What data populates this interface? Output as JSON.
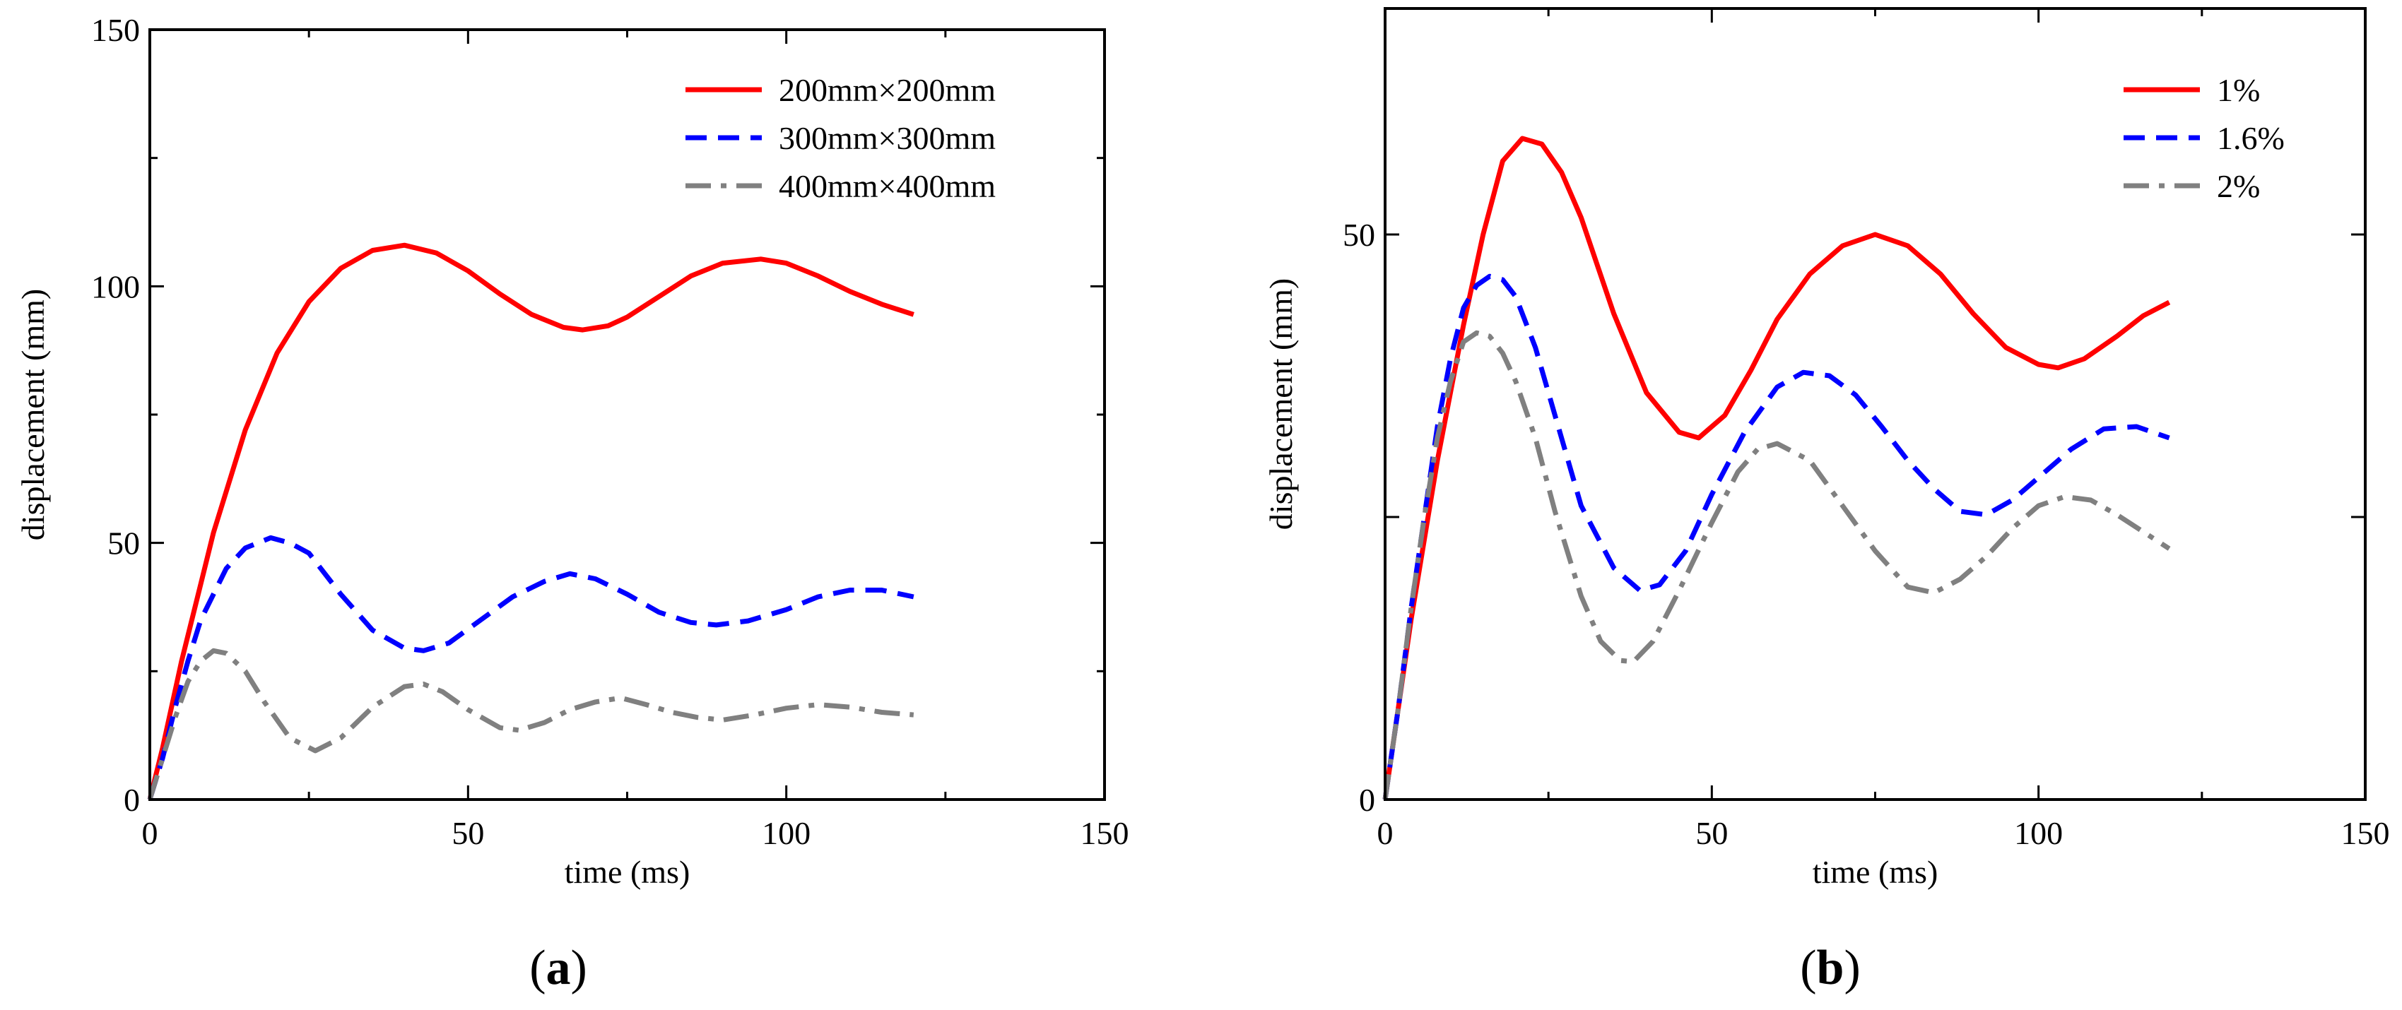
{
  "chart_data": [
    {
      "type": "line",
      "panel_label": "a",
      "title": "",
      "xlabel": "time (ms)",
      "ylabel": "displacement (mm)",
      "xlim": [
        0,
        150
      ],
      "ylim": [
        0,
        150
      ],
      "xticks": [
        0,
        50,
        100,
        150
      ],
      "yticks": [
        0,
        50,
        100,
        150
      ],
      "grid": false,
      "legend_position": "top-right",
      "series": [
        {
          "name": "200mm×200mm",
          "color": "#ff0000",
          "style": "solid",
          "x": [
            0,
            2,
            5,
            8,
            10,
            15,
            20,
            25,
            30,
            35,
            40,
            45,
            50,
            55,
            60,
            65,
            68,
            72,
            75,
            80,
            85,
            90,
            96,
            100,
            105,
            110,
            115,
            120
          ],
          "y": [
            0,
            10,
            27,
            42,
            52,
            72,
            87,
            97,
            103.5,
            107,
            108,
            106.5,
            103,
            98.5,
            94.5,
            92,
            91.5,
            92.3,
            94,
            98,
            102,
            104.5,
            105.3,
            104.5,
            102,
            99,
            96.5,
            94.5
          ]
        },
        {
          "name": "300mm×300mm",
          "color": "#0000ff",
          "style": "dashed",
          "x": [
            0,
            2,
            4,
            6,
            8,
            10,
            12,
            15,
            19,
            22,
            25,
            30,
            35,
            40,
            43,
            47,
            52,
            57,
            62,
            66,
            70,
            75,
            80,
            85,
            89,
            94,
            100,
            105,
            110,
            115,
            120
          ],
          "y": [
            0,
            8,
            18,
            27,
            35,
            40,
            45,
            49,
            51,
            50,
            48,
            40,
            33,
            29.5,
            29,
            30.5,
            35,
            39.5,
            42.5,
            44,
            43,
            40,
            36.5,
            34.5,
            34,
            34.8,
            37,
            39.5,
            40.8,
            40.8,
            39.5
          ]
        },
        {
          "name": "400mm×400mm",
          "color": "#808080",
          "style": "dashdot",
          "x": [
            0,
            2,
            4,
            6,
            8,
            10,
            12,
            15,
            18,
            22,
            26,
            30,
            35,
            40,
            43,
            46,
            50,
            55,
            58,
            62,
            66,
            70,
            74,
            78,
            82,
            86,
            90,
            95,
            100,
            105,
            110,
            115,
            120
          ],
          "y": [
            0,
            8,
            16,
            23,
            27,
            29,
            28.5,
            25,
            19,
            12,
            9.5,
            12,
            18,
            22,
            22.5,
            21,
            17.5,
            14,
            13.5,
            15,
            17.5,
            19,
            19.8,
            18.5,
            17,
            16,
            15.5,
            16.5,
            17.8,
            18.5,
            18,
            17,
            16.5
          ]
        }
      ]
    },
    {
      "type": "line",
      "panel_label": "b",
      "title": "",
      "xlabel": "time (ms)",
      "ylabel": "displacement (mm)",
      "xlim": [
        0,
        150
      ],
      "ylim": [
        0,
        70
      ],
      "xticks": [
        0,
        50,
        100,
        150
      ],
      "yticks": [
        0,
        50
      ],
      "yticks_unlabeled": [
        25
      ],
      "grid": false,
      "legend_position": "top-right",
      "series": [
        {
          "name": "1%",
          "color": "#ff0000",
          "style": "solid",
          "x": [
            0,
            2,
            4,
            6,
            8,
            10,
            12,
            15,
            18,
            21,
            24,
            27,
            30,
            35,
            40,
            45,
            48,
            52,
            56,
            60,
            65,
            70,
            75,
            80,
            85,
            90,
            95,
            100,
            103,
            107,
            112,
            116,
            120
          ],
          "y": [
            0,
            8,
            16,
            23,
            30,
            36,
            42,
            50,
            56.5,
            58.5,
            58,
            55.5,
            51.5,
            43,
            36,
            32.5,
            32,
            34,
            38,
            42.5,
            46.5,
            49,
            50,
            49,
            46.5,
            43,
            40,
            38.5,
            38.2,
            39,
            41,
            42.8,
            44
          ]
        },
        {
          "name": "1.6%",
          "color": "#0000ff",
          "style": "dashed",
          "x": [
            0,
            2,
            4,
            6,
            8,
            10,
            12,
            14,
            16,
            18,
            20,
            23,
            26,
            30,
            35,
            39,
            42,
            46,
            50,
            55,
            60,
            64,
            68,
            72,
            76,
            80,
            84,
            88,
            92,
            96,
            100,
            105,
            110,
            115,
            120
          ],
          "y": [
            0,
            8,
            17,
            25,
            33,
            39,
            43.5,
            45.5,
            46.3,
            46,
            44.5,
            40,
            34,
            26,
            20.5,
            18.5,
            19,
            22,
            27,
            32.5,
            36.5,
            37.8,
            37.5,
            35.8,
            33,
            30,
            27.5,
            25.5,
            25.2,
            26.5,
            28.5,
            31,
            32.8,
            33,
            32
          ]
        },
        {
          "name": "2%",
          "color": "#808080",
          "style": "dashdot",
          "x": [
            0,
            2,
            4,
            6,
            8,
            10,
            12,
            14,
            16,
            18,
            20,
            23,
            26,
            30,
            33,
            36,
            38,
            41,
            45,
            50,
            54,
            57,
            60,
            65,
            70,
            75,
            80,
            84,
            88,
            92,
            96,
            100,
            104,
            108,
            112,
            116,
            120
          ],
          "y": [
            0,
            8,
            17,
            25,
            32,
            37,
            40.5,
            41.3,
            41,
            39.5,
            37,
            32,
            25.5,
            18,
            14,
            12.3,
            12.2,
            14,
            18.5,
            24.5,
            29,
            31,
            31.5,
            30,
            26,
            22,
            18.8,
            18.3,
            19.5,
            21.5,
            24,
            26,
            26.8,
            26.5,
            25.2,
            23.7,
            22.2
          ]
        }
      ]
    }
  ]
}
